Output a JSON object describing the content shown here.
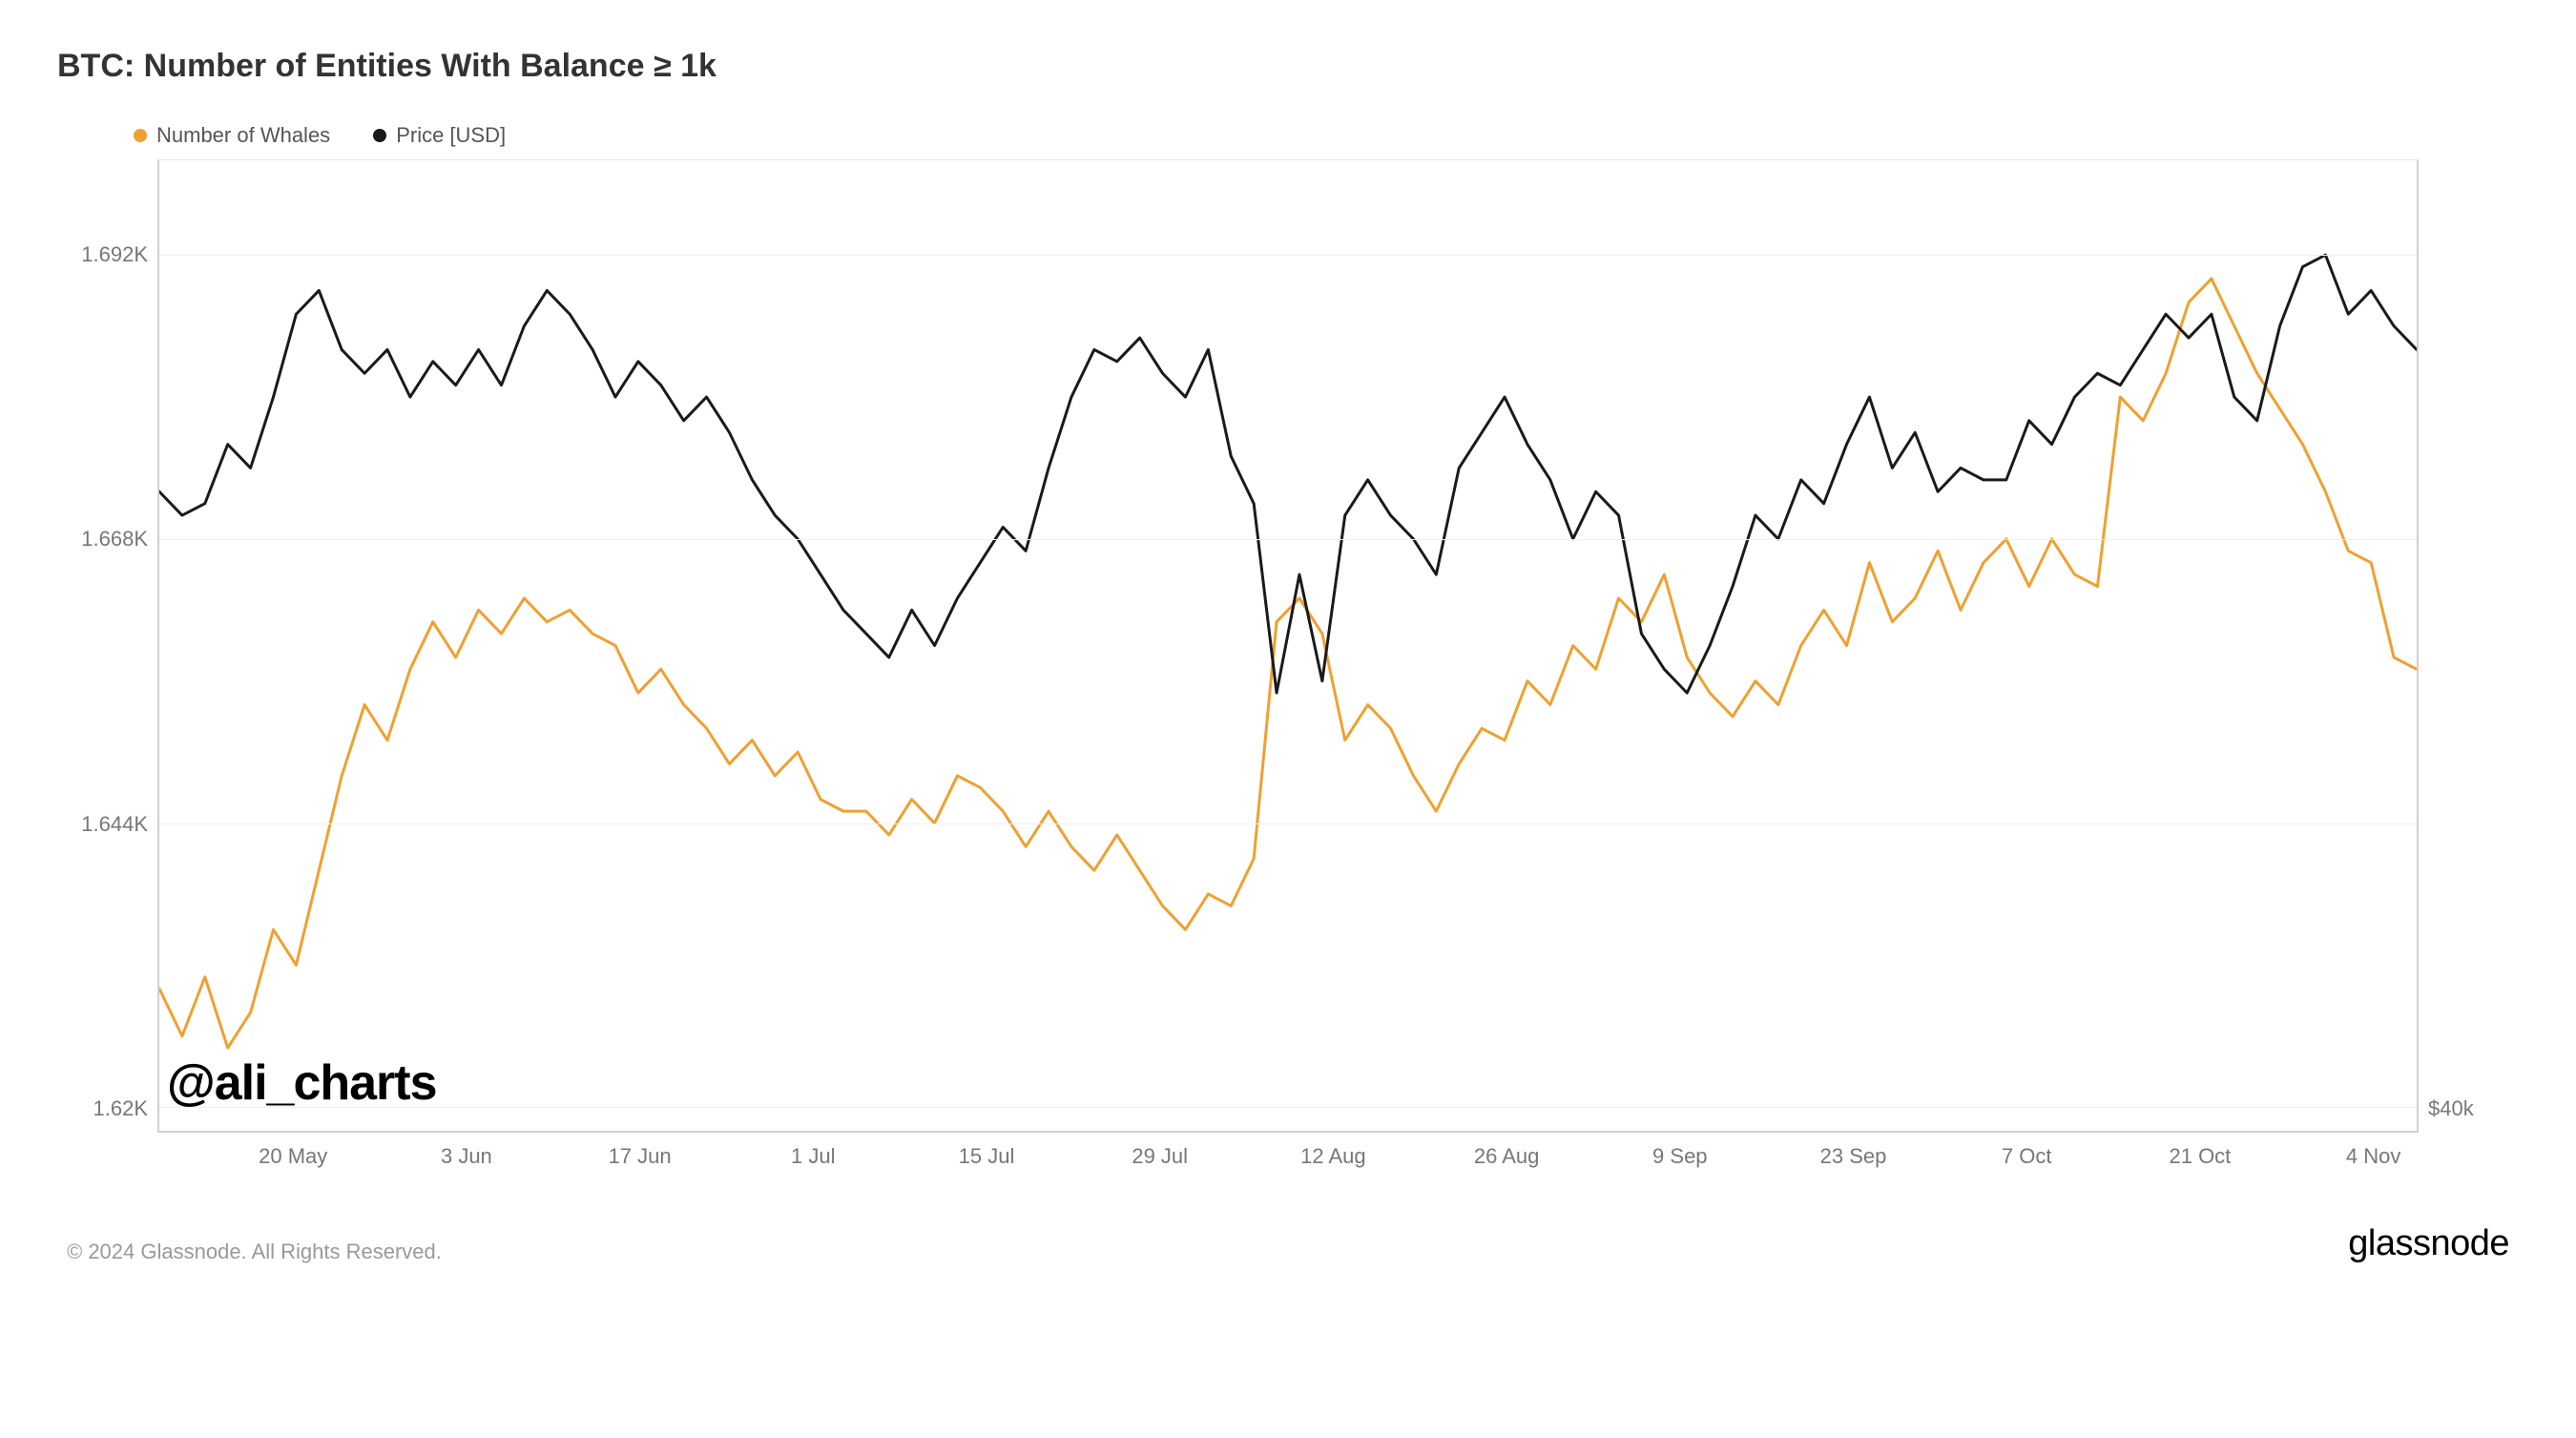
{
  "chart": {
    "type": "line",
    "title": "BTC: Number of Entities With Balance ≥ 1k",
    "title_fontsize": 34,
    "title_color": "#333333",
    "background_color": "#ffffff",
    "grid_color": "#f0f0f0",
    "border_color": "#d0d0d0",
    "legend": {
      "position": "top-left",
      "fontsize": 22,
      "items": [
        {
          "label": "Number of Whales",
          "color": "#f0a030"
        },
        {
          "label": "Price [USD]",
          "color": "#1a1a1a"
        }
      ]
    },
    "x_axis": {
      "ticks": [
        "20 May",
        "3 Jun",
        "17 Jun",
        "1 Jul",
        "15 Jul",
        "29 Jul",
        "12 Aug",
        "26 Aug",
        "9 Sep",
        "23 Sep",
        "7 Oct",
        "21 Oct",
        "4 Nov"
      ],
      "label_fontsize": 22,
      "tick_step_days": 14,
      "start": "2024-05-09",
      "end": "2024-11-05",
      "label_color": "#777777"
    },
    "y_left": {
      "ticks": [
        1.62,
        1.644,
        1.668,
        1.692
      ],
      "tick_labels": [
        "1.62K",
        "1.644K",
        "1.668K",
        "1.692K"
      ],
      "ymin": 1.618,
      "ymax": 1.7,
      "label_fontsize": 22,
      "label_color": "#777777"
    },
    "y_right": {
      "ticks": [
        40
      ],
      "tick_labels": [
        "$40k"
      ],
      "ymin": 40,
      "ymax": 86,
      "label_fontsize": 22,
      "label_color": "#777777"
    },
    "series": {
      "whales": {
        "axis": "left",
        "color": "#f0a030",
        "line_width": 3,
        "values": [
          1.63,
          1.626,
          1.631,
          1.625,
          1.628,
          1.635,
          1.632,
          1.64,
          1.648,
          1.654,
          1.651,
          1.657,
          1.661,
          1.658,
          1.662,
          1.66,
          1.663,
          1.661,
          1.662,
          1.66,
          1.659,
          1.655,
          1.657,
          1.654,
          1.652,
          1.649,
          1.651,
          1.648,
          1.65,
          1.646,
          1.645,
          1.645,
          1.643,
          1.646,
          1.644,
          1.648,
          1.647,
          1.645,
          1.642,
          1.645,
          1.642,
          1.64,
          1.643,
          1.64,
          1.637,
          1.635,
          1.638,
          1.637,
          1.641,
          1.661,
          1.663,
          1.66,
          1.651,
          1.654,
          1.652,
          1.648,
          1.645,
          1.649,
          1.652,
          1.651,
          1.656,
          1.654,
          1.659,
          1.657,
          1.663,
          1.661,
          1.665,
          1.658,
          1.655,
          1.653,
          1.656,
          1.654,
          1.659,
          1.662,
          1.659,
          1.666,
          1.661,
          1.663,
          1.667,
          1.662,
          1.666,
          1.668,
          1.664,
          1.668,
          1.665,
          1.664,
          1.68,
          1.678,
          1.682,
          1.688,
          1.69,
          1.686,
          1.682,
          1.679,
          1.676,
          1.672,
          1.667,
          1.666,
          1.658,
          1.657
        ]
      },
      "price": {
        "axis": "left_mapped",
        "color": "#1a1a1a",
        "line_width": 3,
        "values": [
          1.672,
          1.67,
          1.671,
          1.676,
          1.674,
          1.68,
          1.687,
          1.689,
          1.684,
          1.682,
          1.684,
          1.68,
          1.683,
          1.681,
          1.684,
          1.681,
          1.686,
          1.689,
          1.687,
          1.684,
          1.68,
          1.683,
          1.681,
          1.678,
          1.68,
          1.677,
          1.673,
          1.67,
          1.668,
          1.665,
          1.662,
          1.66,
          1.658,
          1.662,
          1.659,
          1.663,
          1.666,
          1.669,
          1.667,
          1.674,
          1.68,
          1.684,
          1.683,
          1.685,
          1.682,
          1.68,
          1.684,
          1.675,
          1.671,
          1.655,
          1.665,
          1.656,
          1.67,
          1.673,
          1.67,
          1.668,
          1.665,
          1.674,
          1.677,
          1.68,
          1.676,
          1.673,
          1.668,
          1.672,
          1.67,
          1.66,
          1.657,
          1.655,
          1.659,
          1.664,
          1.67,
          1.668,
          1.673,
          1.671,
          1.676,
          1.68,
          1.674,
          1.677,
          1.672,
          1.674,
          1.673,
          1.673,
          1.678,
          1.676,
          1.68,
          1.682,
          1.681,
          1.684,
          1.687,
          1.685,
          1.687,
          1.68,
          1.678,
          1.686,
          1.691,
          1.692,
          1.687,
          1.689,
          1.686,
          1.684
        ]
      }
    },
    "watermark": "@ali_charts",
    "watermark_fontsize": 52,
    "watermark_color": "#000000"
  },
  "footer": {
    "copyright": "© 2024 Glassnode. All Rights Reserved.",
    "copyright_fontsize": 22,
    "copyright_color": "#999999",
    "brand": "glassnode",
    "brand_fontsize": 38,
    "brand_color": "#000000"
  }
}
